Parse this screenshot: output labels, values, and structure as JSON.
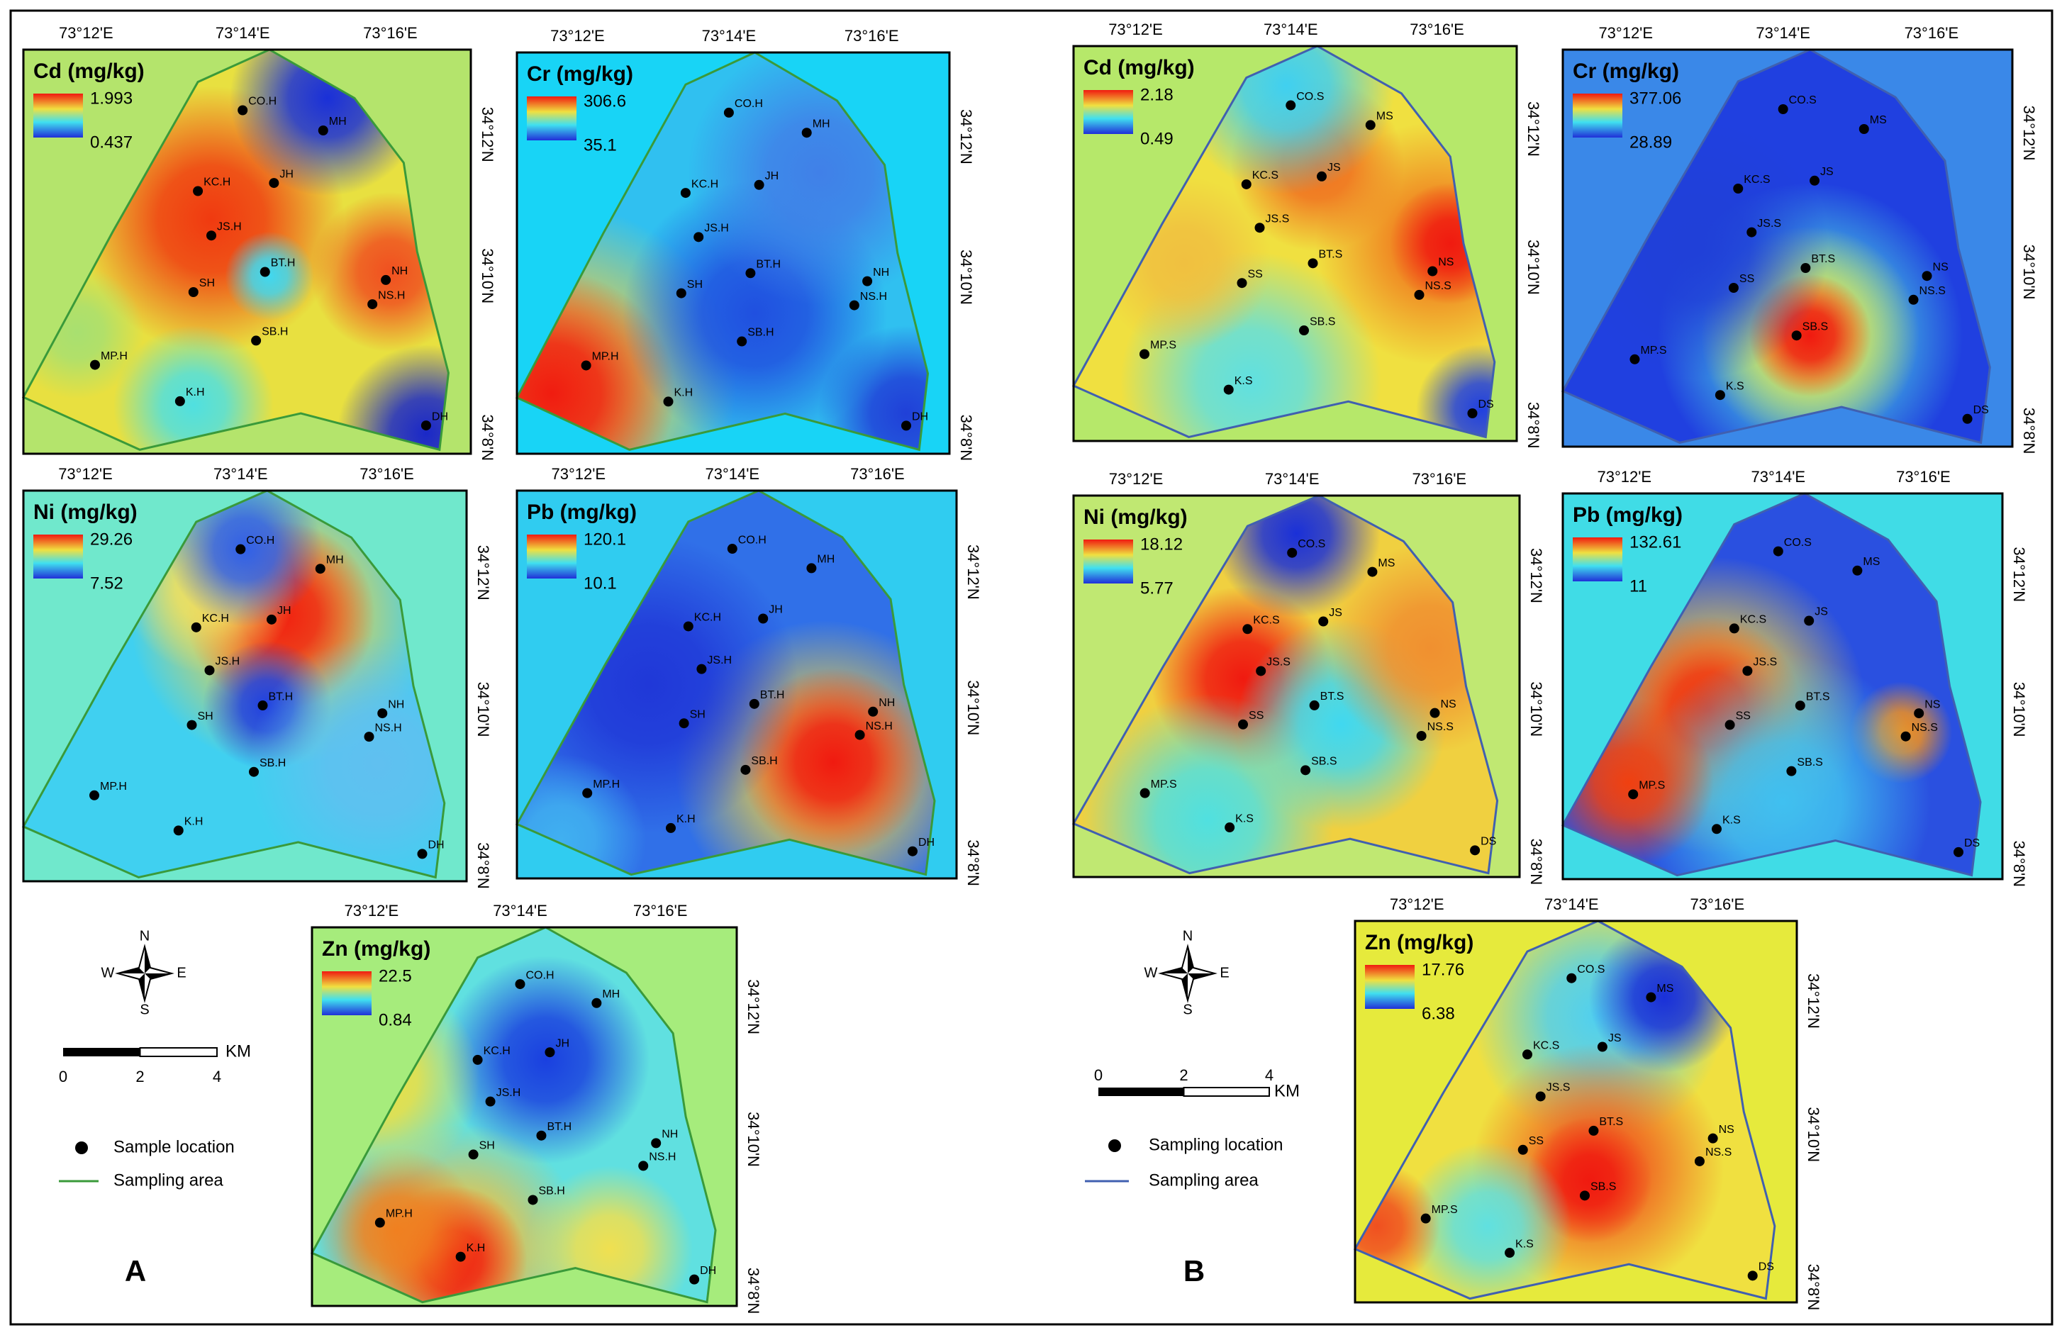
{
  "panel_a": {
    "label": "A",
    "maps": [
      {
        "title": "Cd (mg/kg)",
        "max": 1.993,
        "min": 0.437,
        "lon": [
          "73°12'E",
          "73°14'E",
          "73°16'E"
        ],
        "lat": [
          "34°12'N",
          "34°10'N",
          "34°8'N"
        ],
        "points": [
          "CO.H",
          "MH",
          "KC.H",
          "JH",
          "JS.H",
          "BT.H",
          "SH",
          "NH",
          "NS.H",
          "SB.H",
          "MP.H",
          "K.H",
          "DH"
        ]
      },
      {
        "title": "Cr (mg/kg)",
        "max": 306.6,
        "min": 35.1,
        "lon": [
          "73°12'E",
          "73°14'E",
          "73°16'E"
        ],
        "lat": [
          "34°12'N",
          "34°10'N",
          "34°8'N"
        ],
        "points": [
          "CO.H",
          "MH",
          "KC.H",
          "JH",
          "JS.H",
          "BT.H",
          "SH",
          "NH",
          "NS.H",
          "SB.H",
          "MP.H",
          "K.H",
          "DH"
        ]
      },
      {
        "title": "Ni (mg/kg)",
        "max": 29.26,
        "min": 7.52,
        "lon": [
          "73°12'E",
          "73°14'E",
          "73°16'E"
        ],
        "lat": [
          "34°12'N",
          "34°10'N",
          "34°8'N"
        ],
        "points": [
          "CO.H",
          "MH",
          "KC.H",
          "JH",
          "JS.H",
          "BT.H",
          "SH",
          "NH",
          "NS.H",
          "SB.H",
          "MP.H",
          "K.H",
          "DH"
        ]
      },
      {
        "title": "Pb (mg/kg)",
        "max": 120.1,
        "min": 10.1,
        "lon": [
          "73°12'E",
          "73°14'E",
          "73°16'E"
        ],
        "lat": [
          "34°12'N",
          "34°10'N",
          "34°8'N"
        ],
        "points": [
          "CO.H",
          "MH",
          "KC.H",
          "JH",
          "JS.H",
          "BT.H",
          "SH",
          "NH",
          "NS.H",
          "SB.H",
          "MP.H",
          "K.H",
          "DH"
        ]
      },
      {
        "title": "Zn (mg/kg)",
        "max": 22.5,
        "min": 0.84,
        "lon": [
          "73°12'E",
          "73°14'E",
          "73°16'E"
        ],
        "lat": [
          "34°12'N",
          "34°10'N",
          "34°8'N"
        ],
        "points": [
          "CO.H",
          "MH",
          "KC.H",
          "JH",
          "JS.H",
          "BT.H",
          "SH",
          "NH",
          "NS.H",
          "SB.H",
          "MP.H",
          "K.H",
          "DH"
        ]
      }
    ],
    "compass": {
      "n": "N",
      "e": "E",
      "s": "S",
      "w": "W"
    },
    "scale_bar": {
      "ticks": [
        0,
        2,
        4
      ],
      "unit": "KM"
    },
    "legend": {
      "points": "Sample location",
      "area": "Sampling area"
    }
  },
  "panel_b": {
    "label": "B",
    "maps": [
      {
        "title": "Cd (mg/kg)",
        "max": 2.18,
        "min": 0.49,
        "lon": [
          "73°12'E",
          "73°14'E",
          "73°16'E"
        ],
        "lat": [
          "34°12'N",
          "34°10'N",
          "34°8'N"
        ],
        "points": [
          "CO.S",
          "MS",
          "KC.S",
          "JS",
          "JS.S",
          "BT.S",
          "SS",
          "NS",
          "NS.S",
          "SB.S",
          "MP.S",
          "K.S",
          "DS"
        ]
      },
      {
        "title": "Cr (mg/kg)",
        "max": 377.06,
        "min": 28.89,
        "lon": [
          "73°12'E",
          "73°14'E",
          "73°16'E"
        ],
        "lat": [
          "34°12'N",
          "34°10'N",
          "34°8'N"
        ],
        "points": [
          "CO.S",
          "MS",
          "KC.S",
          "JS",
          "JS.S",
          "BT.S",
          "SS",
          "NS",
          "NS.S",
          "SB.S",
          "MP.S",
          "K.S",
          "DS"
        ]
      },
      {
        "title": "Ni (mg/kg)",
        "max": 18.12,
        "min": 5.77,
        "lon": [
          "73°12'E",
          "73°14'E",
          "73°16'E"
        ],
        "lat": [
          "34°12'N",
          "34°10'N",
          "34°8'N"
        ],
        "points": [
          "CO.S",
          "MS",
          "KC.S",
          "JS",
          "JS.S",
          "BT.S",
          "SS",
          "NS",
          "NS.S",
          "SB.S",
          "MP.S",
          "K.S",
          "DS"
        ]
      },
      {
        "title": "Pb (mg/kg)",
        "max": 132.61,
        "min": 11,
        "lon": [
          "73°12'E",
          "73°14'E",
          "73°16'E"
        ],
        "lat": [
          "34°12'N",
          "34°10'N",
          "34°8'N"
        ],
        "points": [
          "CO.S",
          "MS",
          "KC.S",
          "JS",
          "JS.S",
          "BT.S",
          "SS",
          "NS",
          "NS.S",
          "SB.S",
          "MP.S",
          "K.S",
          "DS"
        ]
      },
      {
        "title": "Zn (mg/kg)",
        "max": 17.76,
        "min": 6.38,
        "lon": [
          "73°12'E",
          "73°14'E",
          "73°16'E"
        ],
        "lat": [
          "34°12'N",
          "34°10'N",
          "34°8'N"
        ],
        "points": [
          "CO.S",
          "MS",
          "KC.S",
          "JS",
          "JS.S",
          "BT.S",
          "SS",
          "NS",
          "NS.S",
          "SB.S",
          "MP.S",
          "K.S",
          "DS"
        ]
      }
    ],
    "compass": {
      "n": "N",
      "e": "E",
      "s": "S",
      "w": "W"
    },
    "scale_bar": {
      "ticks": [
        0,
        2,
        4
      ],
      "unit": "KM"
    },
    "legend": {
      "points": "Sampling location",
      "area": "Sampling area"
    }
  }
}
